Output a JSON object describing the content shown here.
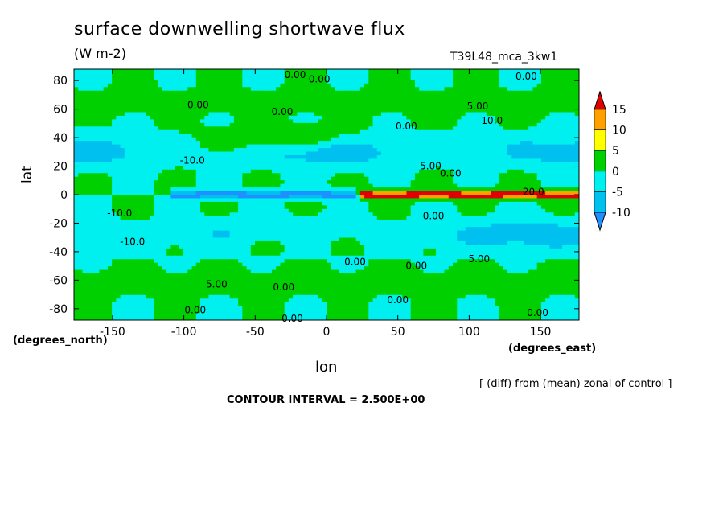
{
  "chart_data": {
    "type": "heatmap",
    "title": "surface downwelling shortwave flux",
    "units_label": "(W m-2)",
    "run_id": "T39L48_mca_3kw1",
    "xlabel": "lon",
    "ylabel": "lat",
    "x_unit_note": "(degrees_east)",
    "y_unit_note": "(degrees_north)",
    "subtitle_note": "[ (diff) from (mean) zonal of control ]",
    "contour_interval_text": "CONTOUR INTERVAL = 2.500E+00",
    "xlim": [
      -177,
      177
    ],
    "ylim": [
      -88,
      88
    ],
    "x_ticks": [
      -150,
      -100,
      -50,
      0,
      50,
      100,
      150
    ],
    "y_ticks": [
      -80,
      -60,
      -40,
      -20,
      0,
      20,
      40,
      60,
      80
    ],
    "colorbar": {
      "levels": [
        -10,
        -5,
        0,
        5,
        10,
        15
      ],
      "colors": [
        "#1e90ff",
        "#00c0f0",
        "#00f0f0",
        "#00d000",
        "#ffff00",
        "#ffa000",
        "#e00000"
      ]
    },
    "contour_labels": [
      {
        "text": "0.00",
        "lon": -22,
        "lat": 84
      },
      {
        "text": "0.00",
        "lon": -5,
        "lat": 81
      },
      {
        "text": "0.00",
        "lon": 140,
        "lat": 83
      },
      {
        "text": "0.00",
        "lon": -90,
        "lat": 63
      },
      {
        "text": "0.00",
        "lon": -31,
        "lat": 58
      },
      {
        "text": "5.00",
        "lon": 106,
        "lat": 62
      },
      {
        "text": "10.0",
        "lon": 116,
        "lat": 52
      },
      {
        "text": "0.00",
        "lon": 56,
        "lat": 48
      },
      {
        "text": "5.00",
        "lon": 73,
        "lat": 20
      },
      {
        "text": "0.00",
        "lon": 87,
        "lat": 15
      },
      {
        "text": "-10.0",
        "lon": -94,
        "lat": 24
      },
      {
        "text": "20.0",
        "lon": 145,
        "lat": 2
      },
      {
        "text": "0.00",
        "lon": 75,
        "lat": -15
      },
      {
        "text": "-10.0",
        "lon": -145,
        "lat": -13
      },
      {
        "text": "-10.0",
        "lon": -136,
        "lat": -33
      },
      {
        "text": "0.00",
        "lon": 20,
        "lat": -47
      },
      {
        "text": "0.00",
        "lon": 63,
        "lat": -50
      },
      {
        "text": "5.00",
        "lon": 107,
        "lat": -45
      },
      {
        "text": "5.00",
        "lon": -77,
        "lat": -63
      },
      {
        "text": "0.00",
        "lon": -30,
        "lat": -65
      },
      {
        "text": "0.00",
        "lon": 50,
        "lat": -74
      },
      {
        "text": "0.00",
        "lon": -92,
        "lat": -81
      },
      {
        "text": "0.00",
        "lon": 148,
        "lat": -83
      },
      {
        "text": "0.00",
        "lon": -24,
        "lat": -87
      }
    ]
  }
}
